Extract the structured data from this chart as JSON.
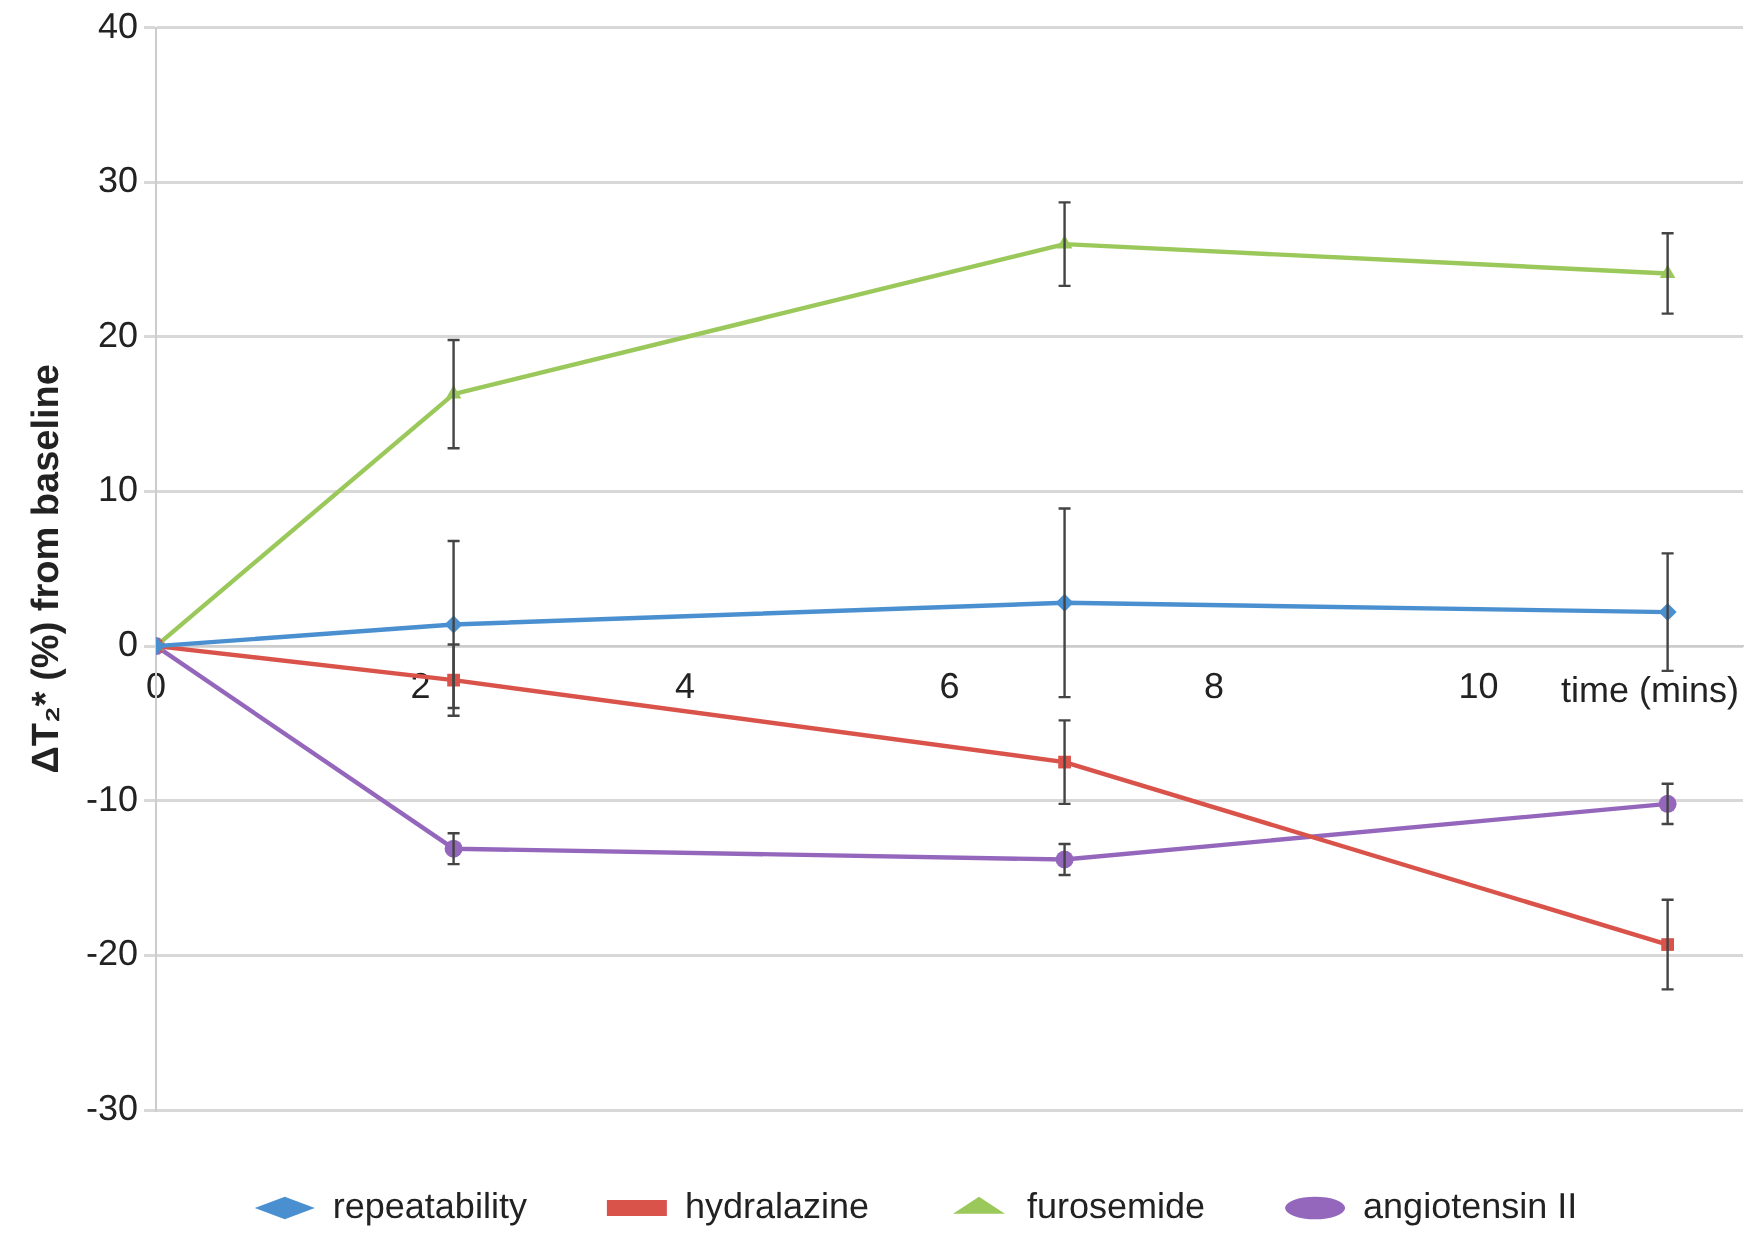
{
  "chart_data": {
    "type": "line",
    "ylabel": "ΔT₂* (%) from baseline",
    "xlabel": "time (mins)",
    "xlim": [
      0,
      12
    ],
    "xticks": [
      0,
      2,
      4,
      6,
      8,
      10
    ],
    "ylim": [
      -30,
      40
    ],
    "yticks": [
      -30,
      -20,
      -10,
      0,
      10,
      20,
      30,
      40
    ],
    "grid": "y",
    "legend": "bottom",
    "x": [
      0,
      2.25,
      6.87,
      11.43
    ],
    "series": [
      {
        "name": "repeatability",
        "color": "#4a90d0",
        "marker": "diamond",
        "values": [
          0,
          1.4,
          2.8,
          2.2
        ],
        "errors": [
          null,
          5.4,
          6.1,
          3.8
        ]
      },
      {
        "name": "hydralazine",
        "color": "#d9534a",
        "marker": "square",
        "values": [
          0,
          -2.2,
          -7.5,
          -19.3
        ],
        "errors": [
          null,
          2.3,
          2.7,
          2.9
        ]
      },
      {
        "name": "furosemide",
        "color": "#9bc85a",
        "marker": "triangle",
        "values": [
          0,
          16.3,
          26,
          24.1
        ],
        "errors": [
          null,
          3.5,
          2.7,
          2.6
        ]
      },
      {
        "name": "angiotensin II",
        "color": "#9467bd",
        "marker": "circle",
        "values": [
          0,
          -13.1,
          -13.8,
          -10.2
        ],
        "errors": [
          null,
          1,
          1,
          1.3
        ]
      }
    ]
  }
}
